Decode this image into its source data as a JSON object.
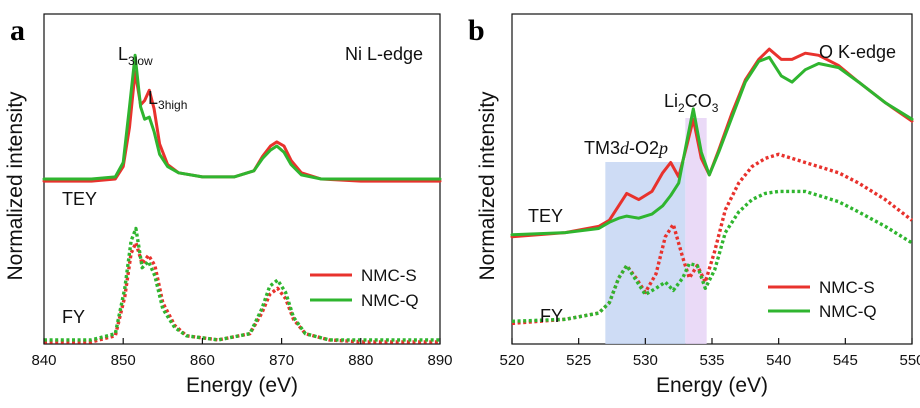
{
  "chart_data": [
    {
      "type": "line",
      "panel_label": "a",
      "title": "Ni L-edge",
      "xlabel": "Energy (eV)",
      "ylabel": "Normalized intensity",
      "xlim": [
        840,
        890
      ],
      "xticks": [
        840,
        850,
        860,
        870,
        880,
        890
      ],
      "xtick_labels": [
        "840",
        "850",
        "860",
        "870",
        "880",
        "890"
      ],
      "ylim": [
        0,
        1.6
      ],
      "annotations": [
        {
          "base": "L",
          "sub": "3low",
          "x": 851.5,
          "y": 1.52
        },
        {
          "base": "L",
          "sub": "3high",
          "x": 854.5,
          "y": 1.33
        }
      ],
      "group_labels": [
        {
          "text": "TEY",
          "y": 0.93
        },
        {
          "text": "FY",
          "y": 0.12
        }
      ],
      "legend": {
        "position": "right-middle",
        "entries": [
          "NMC-S",
          "NMC-Q"
        ]
      },
      "series": [
        {
          "name": "NMC-S",
          "mode": "TEY",
          "style": "solid",
          "color": "#e8322d",
          "x": [
            840,
            846,
            849,
            850,
            850.8,
            851.5,
            852.2,
            852.7,
            853.3,
            853.9,
            854.6,
            855.6,
            857,
            860,
            864,
            866.5,
            867.6,
            868.6,
            869.4,
            870.3,
            871.2,
            872.5,
            875,
            880,
            885,
            890
          ],
          "y": [
            0.79,
            0.79,
            0.8,
            0.86,
            1.05,
            1.32,
            1.16,
            1.18,
            1.23,
            1.14,
            0.97,
            0.87,
            0.83,
            0.81,
            0.81,
            0.84,
            0.91,
            0.96,
            0.98,
            0.96,
            0.89,
            0.83,
            0.8,
            0.79,
            0.79,
            0.79
          ]
        },
        {
          "name": "NMC-Q",
          "mode": "TEY",
          "style": "solid",
          "color": "#2fb52f",
          "x": [
            840,
            846,
            849,
            850,
            850.8,
            851.5,
            852.2,
            852.7,
            853.3,
            853.9,
            854.6,
            855.6,
            857,
            860,
            864,
            866.5,
            867.6,
            868.6,
            869.4,
            870.3,
            871.2,
            872.5,
            875,
            880,
            885,
            890
          ],
          "y": [
            0.8,
            0.8,
            0.81,
            0.88,
            1.15,
            1.4,
            1.15,
            1.09,
            1.1,
            1.03,
            0.92,
            0.86,
            0.83,
            0.81,
            0.81,
            0.84,
            0.9,
            0.94,
            0.96,
            0.93,
            0.87,
            0.82,
            0.8,
            0.8,
            0.8,
            0.8
          ]
        },
        {
          "name": "NMC-S",
          "mode": "FY",
          "style": "dotted",
          "color": "#e8322d",
          "x": [
            840,
            846,
            849,
            850.2,
            851,
            851.6,
            852.4,
            853.2,
            854,
            855,
            856.5,
            858,
            862,
            866,
            867.5,
            868.5,
            869.5,
            870.5,
            871.5,
            873,
            876,
            880,
            885,
            890
          ],
          "y": [
            0.01,
            0.01,
            0.04,
            0.23,
            0.44,
            0.49,
            0.39,
            0.43,
            0.38,
            0.2,
            0.09,
            0.04,
            0.02,
            0.05,
            0.15,
            0.24,
            0.27,
            0.22,
            0.12,
            0.05,
            0.02,
            0.01,
            0.01,
            0.01
          ]
        },
        {
          "name": "NMC-Q",
          "mode": "FY",
          "style": "dotted",
          "color": "#2fb52f",
          "x": [
            840,
            846,
            849,
            850.2,
            851,
            851.6,
            852.4,
            853.2,
            854,
            855,
            856.5,
            858,
            862,
            866,
            867.5,
            868.5,
            869.5,
            870.5,
            871.5,
            873,
            876,
            880,
            885,
            890
          ],
          "y": [
            0.02,
            0.02,
            0.05,
            0.27,
            0.5,
            0.56,
            0.37,
            0.4,
            0.33,
            0.17,
            0.08,
            0.04,
            0.02,
            0.05,
            0.17,
            0.28,
            0.31,
            0.25,
            0.13,
            0.05,
            0.02,
            0.02,
            0.02,
            0.02
          ]
        }
      ]
    },
    {
      "type": "line",
      "panel_label": "b",
      "title": "O K-edge",
      "xlabel": "Energy (eV)",
      "ylabel": "Normalized intensity",
      "xlim": [
        520,
        550
      ],
      "xticks": [
        520,
        525,
        530,
        535,
        540,
        545,
        550
      ],
      "xtick_labels": [
        "520",
        "525",
        "530",
        "535",
        "540",
        "545",
        "550"
      ],
      "ylim": [
        0,
        1.6
      ],
      "shaded_regions": [
        {
          "label": "TM3d-O2p",
          "label_parts": {
            "a": "TM3",
            "b": "d",
            "c": "-O2",
            "d": "p"
          },
          "x0": 527.0,
          "x1": 533.0,
          "color": "#c5d6f3"
        },
        {
          "label": "Li2CO3",
          "label_parts": {
            "a": "Li",
            "b": "2",
            "c": "CO",
            "d": "3"
          },
          "x0": 533.0,
          "x1": 534.6,
          "color": "#e6d3f6"
        }
      ],
      "group_labels": [
        {
          "text": "TEY",
          "y": 0.68
        },
        {
          "text": "FY",
          "y": 0.1
        }
      ],
      "legend": {
        "position": "bottom-right",
        "entries": [
          "NMC-S",
          "NMC-Q"
        ]
      },
      "series": [
        {
          "name": "NMC-S",
          "mode": "TEY",
          "style": "solid",
          "color": "#e8322d",
          "x": [
            520,
            524,
            526.5,
            527.3,
            528,
            528.6,
            529.5,
            530.5,
            531.3,
            531.9,
            532.5,
            533.1,
            533.6,
            534.2,
            534.8,
            535.5,
            536.5,
            537.5,
            538.5,
            539.3,
            540.2,
            541,
            542,
            543,
            544.5,
            546,
            548,
            550
          ],
          "y": [
            0.52,
            0.54,
            0.57,
            0.6,
            0.67,
            0.73,
            0.7,
            0.74,
            0.83,
            0.88,
            0.81,
            0.96,
            1.09,
            0.9,
            0.82,
            0.94,
            1.12,
            1.28,
            1.38,
            1.43,
            1.38,
            1.38,
            1.41,
            1.4,
            1.35,
            1.27,
            1.17,
            1.08
          ]
        },
        {
          "name": "NMC-Q",
          "mode": "TEY",
          "style": "solid",
          "color": "#2fb52f",
          "x": [
            520,
            524,
            526.5,
            527.3,
            528,
            528.6,
            529.5,
            530.5,
            531.3,
            531.9,
            532.5,
            533.1,
            533.6,
            534.2,
            534.8,
            535.5,
            536.5,
            537.5,
            538.5,
            539.3,
            540.2,
            541,
            542,
            543,
            544.5,
            546,
            548,
            550
          ],
          "y": [
            0.53,
            0.54,
            0.56,
            0.59,
            0.61,
            0.62,
            0.61,
            0.63,
            0.67,
            0.72,
            0.78,
            0.98,
            1.14,
            0.93,
            0.82,
            0.93,
            1.1,
            1.27,
            1.37,
            1.39,
            1.3,
            1.27,
            1.33,
            1.36,
            1.34,
            1.27,
            1.17,
            1.09
          ]
        },
        {
          "name": "NMC-S",
          "mode": "FY",
          "style": "dotted",
          "color": "#e8322d",
          "x": [
            520,
            524,
            526.5,
            527.3,
            528,
            528.6,
            529.3,
            530,
            530.8,
            531.5,
            532.1,
            532.8,
            533.3,
            533.9,
            534.5,
            535.2,
            536,
            537,
            538,
            539,
            540,
            541,
            542,
            543,
            544.5,
            546,
            548,
            550
          ],
          "y": [
            0.1,
            0.12,
            0.15,
            0.2,
            0.32,
            0.38,
            0.32,
            0.25,
            0.34,
            0.52,
            0.58,
            0.42,
            0.32,
            0.38,
            0.3,
            0.45,
            0.65,
            0.78,
            0.86,
            0.9,
            0.92,
            0.9,
            0.88,
            0.86,
            0.83,
            0.78,
            0.7,
            0.6
          ]
        },
        {
          "name": "NMC-Q",
          "mode": "FY",
          "style": "dotted",
          "color": "#2fb52f",
          "x": [
            520,
            524,
            526.5,
            527.3,
            528,
            528.6,
            529.3,
            530,
            530.8,
            531.5,
            532.1,
            532.8,
            533.3,
            533.9,
            534.5,
            535.2,
            536,
            537,
            538,
            539,
            540,
            541,
            542,
            543,
            544.5,
            546,
            548,
            550
          ],
          "y": [
            0.11,
            0.12,
            0.15,
            0.2,
            0.32,
            0.38,
            0.31,
            0.24,
            0.27,
            0.3,
            0.26,
            0.32,
            0.39,
            0.38,
            0.27,
            0.36,
            0.54,
            0.64,
            0.7,
            0.73,
            0.74,
            0.74,
            0.74,
            0.72,
            0.69,
            0.64,
            0.57,
            0.49
          ]
        }
      ]
    }
  ]
}
